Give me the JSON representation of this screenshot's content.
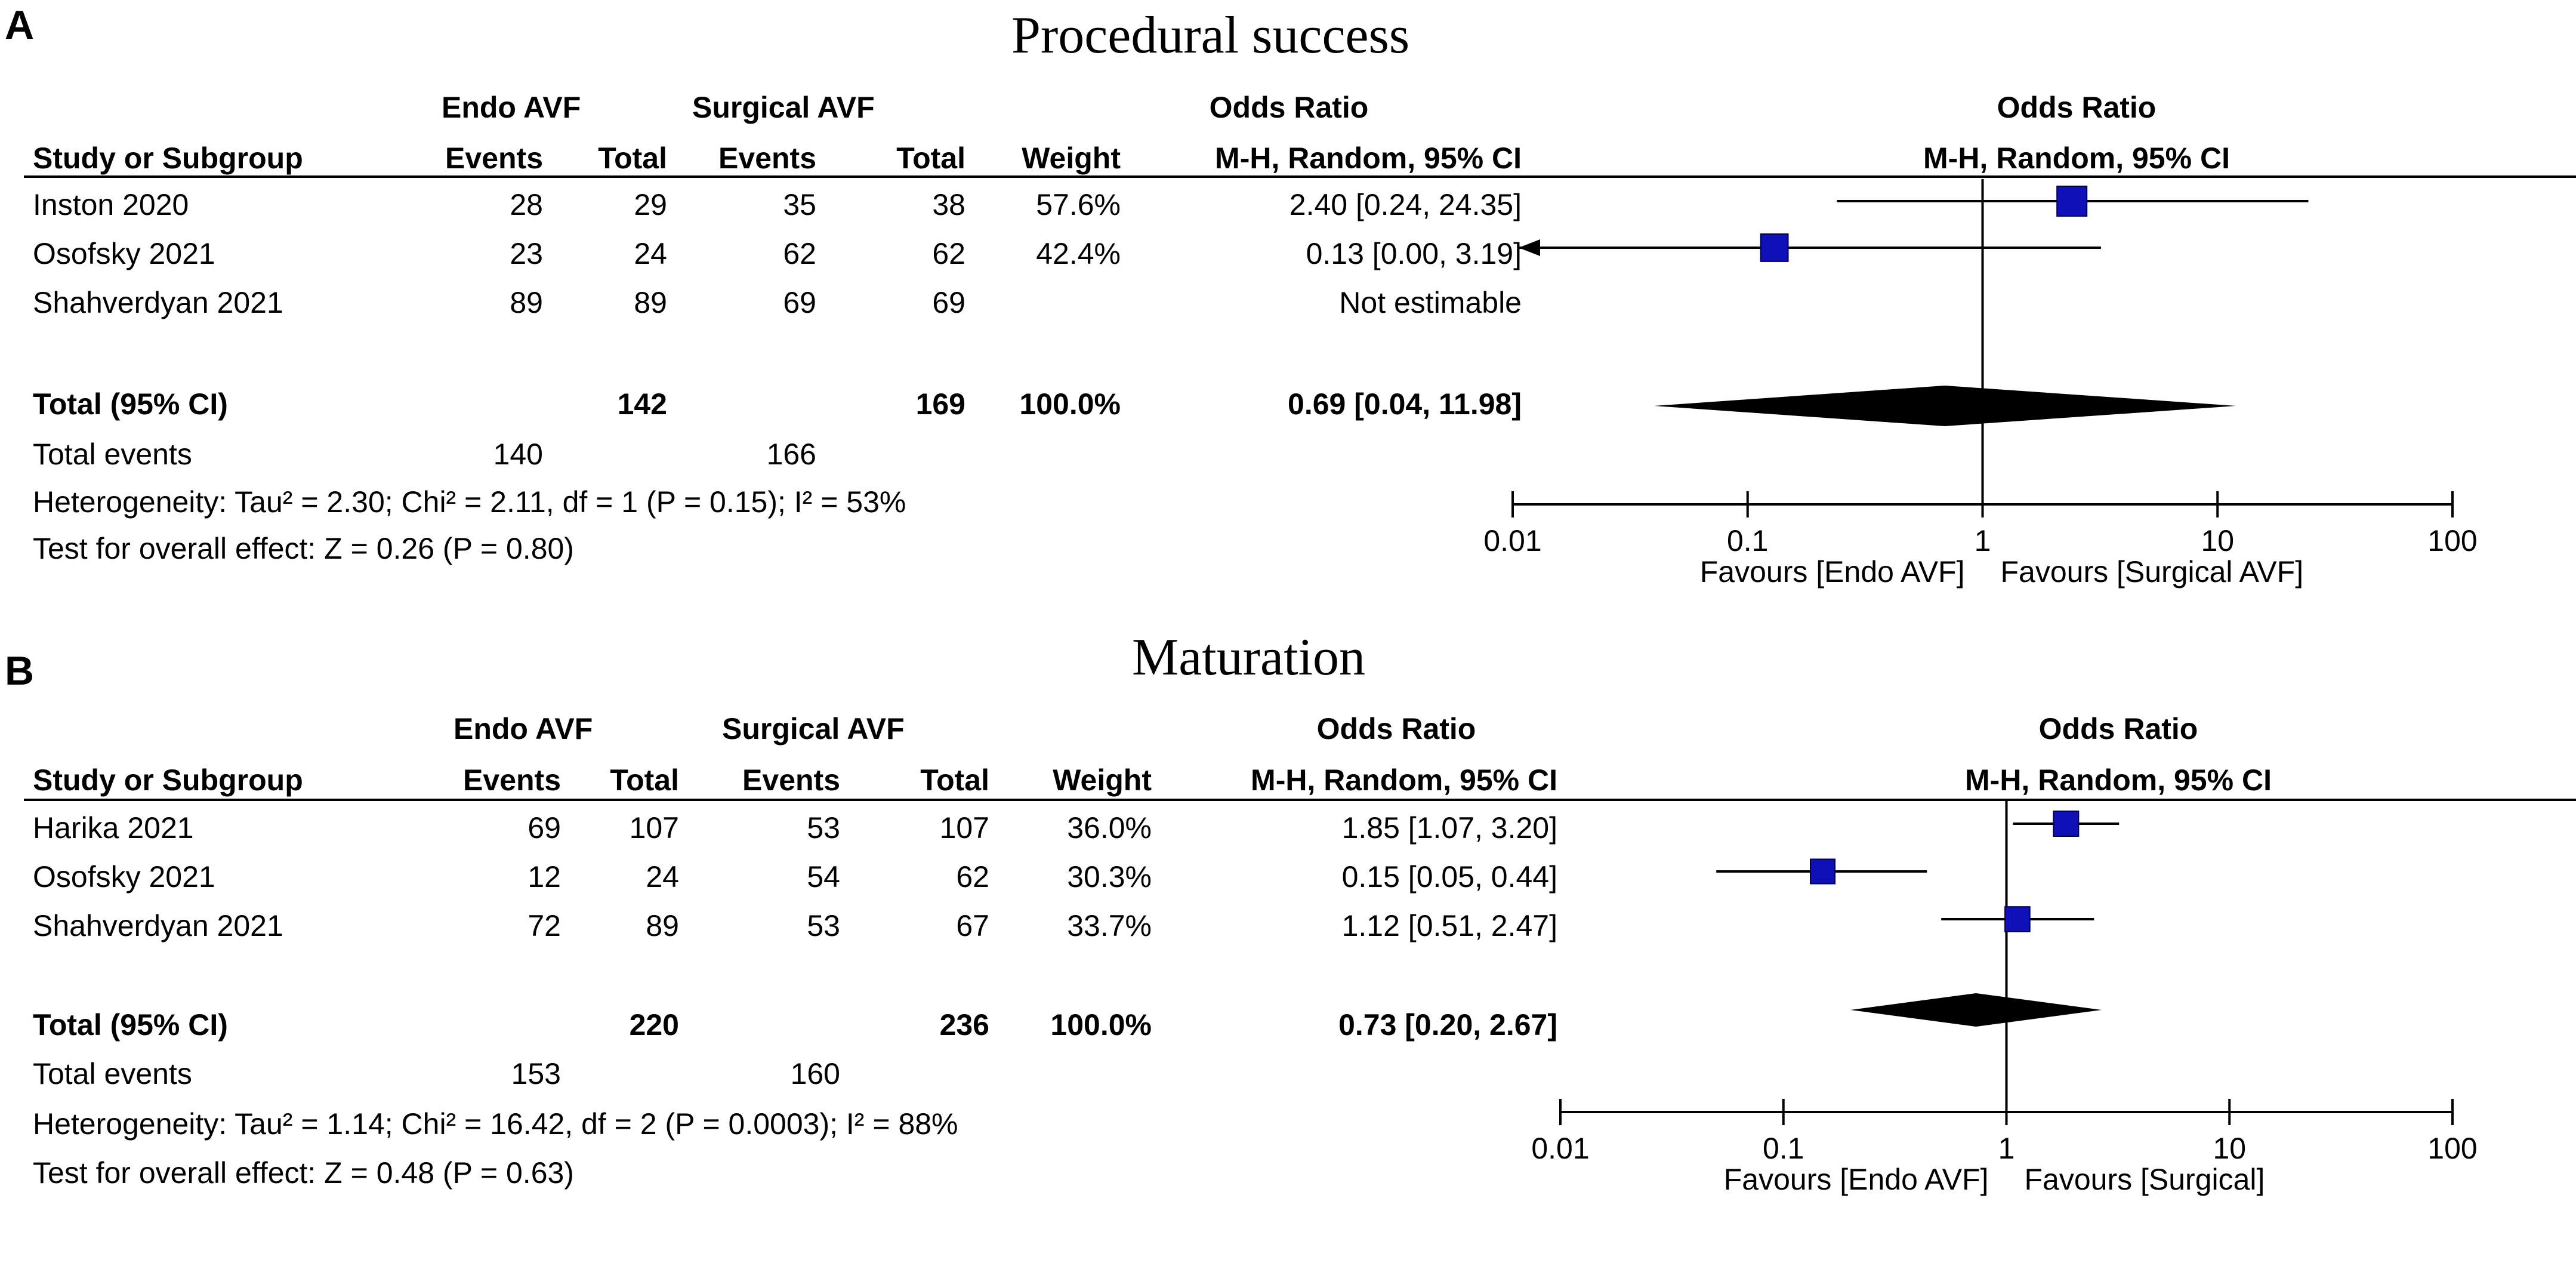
{
  "chart_data": [
    {
      "type": "forest",
      "panel_label": "A",
      "title": "Procedural success",
      "group1": "Endo AVF",
      "group2": "Surgical AVF",
      "effect_header": "Odds Ratio",
      "method": "M-H, Random, 95% CI",
      "columns": {
        "study": "Study or Subgroup",
        "events": "Events",
        "total": "Total",
        "weight": "Weight",
        "or": "M-H, Random, 95% CI"
      },
      "studies": [
        {
          "name": "Inston 2020",
          "e1": "28",
          "t1": "29",
          "e2": "35",
          "t2": "38",
          "weight": "57.6%",
          "or_text": "2.40 [0.24, 24.35]",
          "or": 2.4,
          "lo": 0.24,
          "hi": 24.35,
          "w": 57.6
        },
        {
          "name": "Osofsky 2021",
          "e1": "23",
          "t1": "24",
          "e2": "62",
          "t2": "62",
          "weight": "42.4%",
          "or_text": "0.13 [0.00, 3.19]",
          "or": 0.13,
          "lo": 0.0,
          "hi": 3.19,
          "w": 42.4
        },
        {
          "name": "Shahverdyan 2021",
          "e1": "89",
          "t1": "89",
          "e2": "69",
          "t2": "69",
          "weight": "",
          "or_text": "Not estimable",
          "or": null,
          "lo": null,
          "hi": null,
          "w": 0
        }
      ],
      "total": {
        "label": "Total (95% CI)",
        "t1": "142",
        "t2": "169",
        "weight": "100.0%",
        "or_text": "0.69 [0.04, 11.98]",
        "or": 0.69,
        "lo": 0.04,
        "hi": 11.98
      },
      "total_events": {
        "label": "Total events",
        "e1": "140",
        "e2": "166"
      },
      "heterogeneity": "Heterogeneity: Tau² = 2.30; Chi² = 2.11, df = 1 (P = 0.15); I² = 53%",
      "overall_effect": "Test for overall effect: Z = 0.26 (P = 0.80)",
      "x_scale": "log",
      "xlim": [
        0.01,
        100
      ],
      "ticks": [
        0.01,
        0.1,
        1,
        10,
        100
      ],
      "tick_labels": [
        "0.01",
        "0.1",
        "1",
        "10",
        "100"
      ],
      "favours_left": "Favours [Endo AVF]",
      "favours_right": "Favours [Surgical AVF]"
    },
    {
      "type": "forest",
      "panel_label": "B",
      "title": "Maturation",
      "group1": "Endo AVF",
      "group2": "Surgical AVF",
      "effect_header": "Odds Ratio",
      "method": "M-H, Random, 95% CI",
      "columns": {
        "study": "Study or Subgroup",
        "events": "Events",
        "total": "Total",
        "weight": "Weight",
        "or": "M-H, Random, 95% CI"
      },
      "studies": [
        {
          "name": "Harika 2021",
          "e1": "69",
          "t1": "107",
          "e2": "53",
          "t2": "107",
          "weight": "36.0%",
          "or_text": "1.85 [1.07, 3.20]",
          "or": 1.85,
          "lo": 1.07,
          "hi": 3.2,
          "w": 36.0
        },
        {
          "name": "Osofsky 2021",
          "e1": "12",
          "t1": "24",
          "e2": "54",
          "t2": "62",
          "weight": "30.3%",
          "or_text": "0.15 [0.05, 0.44]",
          "or": 0.15,
          "lo": 0.05,
          "hi": 0.44,
          "w": 30.3
        },
        {
          "name": "Shahverdyan 2021",
          "e1": "72",
          "t1": "89",
          "e2": "53",
          "t2": "67",
          "weight": "33.7%",
          "or_text": "1.12 [0.51, 2.47]",
          "or": 1.12,
          "lo": 0.51,
          "hi": 2.47,
          "w": 33.7
        }
      ],
      "total": {
        "label": "Total (95% CI)",
        "t1": "220",
        "t2": "236",
        "weight": "100.0%",
        "or_text": "0.73 [0.20, 2.67]",
        "or": 0.73,
        "lo": 0.2,
        "hi": 2.67
      },
      "total_events": {
        "label": "Total events",
        "e1": "153",
        "e2": "160"
      },
      "heterogeneity": "Heterogeneity: Tau² = 1.14; Chi² = 16.42, df = 2 (P = 0.0003); I² = 88%",
      "overall_effect": "Test for overall effect: Z = 0.48 (P = 0.63)",
      "x_scale": "log",
      "xlim": [
        0.01,
        100
      ],
      "ticks": [
        0.01,
        0.1,
        1,
        10,
        100
      ],
      "tick_labels": [
        "0.01",
        "0.1",
        "1",
        "10",
        "100"
      ],
      "favours_left": "Favours [Endo AVF]",
      "favours_right": "Favours [Surgical]"
    }
  ]
}
